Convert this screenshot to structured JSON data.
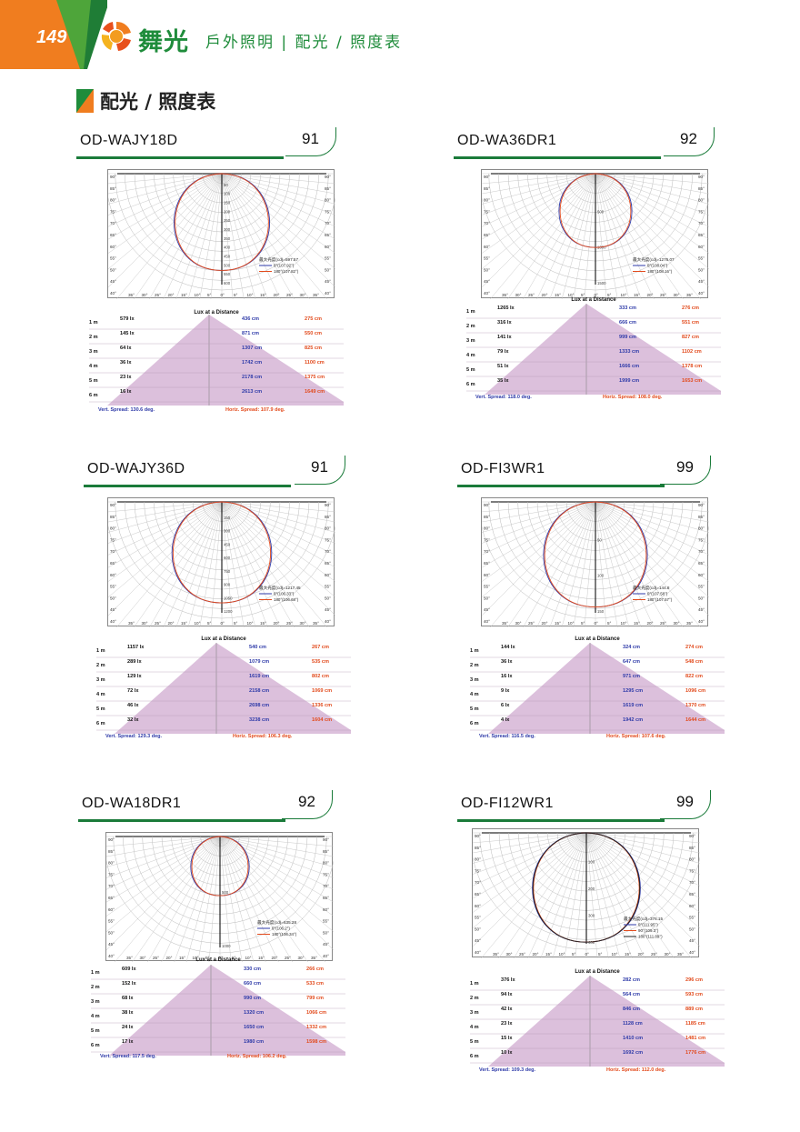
{
  "header": {
    "page_number": "149",
    "brand": "舞光",
    "subtitle": "戶外照明 | 配光 / 照度表",
    "section_title": "配光 / 照度表"
  },
  "colors": {
    "brand_green": "#1f8c3b",
    "tab_orange": "#f07d1f",
    "vertical_blue": "#2e3aa8",
    "horizontal_red": "#e24a1c",
    "lux_fill": "#d8b6d8"
  },
  "lux_heading": "Lux at a Distance",
  "products": [
    {
      "model": "OD-WAJY18D",
      "badge": "91",
      "polar": {
        "max_label": "最大光度(cd)=597.57",
        "legend": [
          "0°(107.92°)",
          "180°(107.82°)"
        ],
        "radial_ticks": [
          "50",
          "100",
          "150",
          "200",
          "250",
          "300",
          "350",
          "400",
          "450",
          "500",
          "550",
          "600"
        ],
        "spread_ratio": 0.82
      },
      "rows": [
        {
          "d": "1 m",
          "lux": "579 lx",
          "v": "436 cm",
          "h": "275 cm"
        },
        {
          "d": "2 m",
          "lux": "145 lx",
          "v": "871 cm",
          "h": "550 cm"
        },
        {
          "d": "3 m",
          "lux": "64 lx",
          "v": "1307 cm",
          "h": "825 cm"
        },
        {
          "d": "4 m",
          "lux": "36 lx",
          "v": "1742 cm",
          "h": "1100 cm"
        },
        {
          "d": "5 m",
          "lux": "23 lx",
          "v": "2178 cm",
          "h": "1375 cm"
        },
        {
          "d": "6 m",
          "lux": "16 lx",
          "v": "2613 cm",
          "h": "1649 cm"
        }
      ],
      "vert_spread": "Vert. Spread: 130.6 deg.",
      "horiz_spread": "Horiz. Spread: 107.9 deg."
    },
    {
      "model": "OD-WA36DR1",
      "badge": "92",
      "polar": {
        "max_label": "最大光度(cd)=1276.07",
        "legend": [
          "0°(108.04°)",
          "180°(108.16°)"
        ],
        "radial_ticks": [
          "500",
          "1000",
          "1500"
        ],
        "spread_ratio": 0.6
      },
      "rows": [
        {
          "d": "1 m",
          "lux": "1265 lx",
          "v": "333 cm",
          "h": "276 cm"
        },
        {
          "d": "2 m",
          "lux": "316 lx",
          "v": "666 cm",
          "h": "551 cm"
        },
        {
          "d": "3 m",
          "lux": "141 lx",
          "v": "999 cm",
          "h": "827 cm"
        },
        {
          "d": "4 m",
          "lux": "79 lx",
          "v": "1333 cm",
          "h": "1102 cm"
        },
        {
          "d": "5 m",
          "lux": "51 lx",
          "v": "1666 cm",
          "h": "1378 cm"
        },
        {
          "d": "6 m",
          "lux": "35 lx",
          "v": "1999 cm",
          "h": "1653 cm"
        }
      ],
      "vert_spread": "Vert. Spread: 118.0 deg.",
      "horiz_spread": "Horiz. Spread: 108.0 deg."
    },
    {
      "model": "OD-WAJY36D",
      "badge": "91",
      "polar": {
        "max_label": "最大光度(cd)=1217.45",
        "legend": [
          "0°(106.33°)",
          "180°(106.68°)"
        ],
        "radial_ticks": [
          "150",
          "300",
          "450",
          "600",
          "750",
          "900",
          "1050",
          "1200"
        ],
        "spread_ratio": 0.86
      },
      "rows": [
        {
          "d": "1 m",
          "lux": "1157 lx",
          "v": "540 cm",
          "h": "267 cm"
        },
        {
          "d": "2 m",
          "lux": "289 lx",
          "v": "1079 cm",
          "h": "535 cm"
        },
        {
          "d": "3 m",
          "lux": "129 lx",
          "v": "1619 cm",
          "h": "802 cm"
        },
        {
          "d": "4 m",
          "lux": "72 lx",
          "v": "2158 cm",
          "h": "1069 cm"
        },
        {
          "d": "5 m",
          "lux": "46 lx",
          "v": "2698 cm",
          "h": "1336 cm"
        },
        {
          "d": "6 m",
          "lux": "32 lx",
          "v": "3238 cm",
          "h": "1604 cm"
        }
      ],
      "vert_spread": "Vert. Spread: 129.3 deg.",
      "horiz_spread": "Horiz. Spread: 106.3 deg."
    },
    {
      "model": "OD-FI3WR1",
      "badge": "99",
      "polar": {
        "max_label": "最大光度(cd)=144.8",
        "legend": [
          "0°(107.58°)",
          "180°(107.57°)"
        ],
        "radial_ticks": [
          "50",
          "100",
          "150"
        ],
        "spread_ratio": 0.9
      },
      "rows": [
        {
          "d": "1 m",
          "lux": "144 lx",
          "v": "324 cm",
          "h": "274 cm"
        },
        {
          "d": "2 m",
          "lux": "36 lx",
          "v": "647 cm",
          "h": "548 cm"
        },
        {
          "d": "3 m",
          "lux": "16 lx",
          "v": "971 cm",
          "h": "822 cm"
        },
        {
          "d": "4 m",
          "lux": "9 lx",
          "v": "1295 cm",
          "h": "1096 cm"
        },
        {
          "d": "5 m",
          "lux": "6 lx",
          "v": "1619 cm",
          "h": "1370 cm"
        },
        {
          "d": "6 m",
          "lux": "4 lx",
          "v": "1942 cm",
          "h": "1644 cm"
        }
      ],
      "vert_spread": "Vert. Spread: 116.5 deg.",
      "horiz_spread": "Horiz. Spread: 107.6 deg."
    },
    {
      "model": "OD-WA18DR1",
      "badge": "92",
      "polar": {
        "max_label": "最大光度(cd)=635.28",
        "legend": [
          "0°(106.2°)",
          "180°(106.34°)"
        ],
        "radial_ticks": [
          "500",
          "1000"
        ],
        "spread_ratio": 0.46
      },
      "rows": [
        {
          "d": "1 m",
          "lux": "609 lx",
          "v": "330 cm",
          "h": "266 cm"
        },
        {
          "d": "2 m",
          "lux": "152 lx",
          "v": "660 cm",
          "h": "533 cm"
        },
        {
          "d": "3 m",
          "lux": "68 lx",
          "v": "990 cm",
          "h": "799 cm"
        },
        {
          "d": "4 m",
          "lux": "38 lx",
          "v": "1320 cm",
          "h": "1066 cm"
        },
        {
          "d": "5 m",
          "lux": "24 lx",
          "v": "1650 cm",
          "h": "1332 cm"
        },
        {
          "d": "6 m",
          "lux": "17 lx",
          "v": "1980 cm",
          "h": "1598 cm"
        }
      ],
      "vert_spread": "Vert. Spread: 117.5 deg.",
      "horiz_spread": "Horiz. Spread: 106.2 deg."
    },
    {
      "model": "OD-FI12WR1",
      "badge": "99",
      "polar": {
        "max_label": "最大光度(cd)=376.15",
        "legend": [
          "0°(111.95°)",
          "90°(109.3°)",
          "180°(111.89°)"
        ],
        "radial_ticks": [
          "100",
          "200",
          "300",
          "400"
        ],
        "spread_ratio": 0.94
      },
      "rows": [
        {
          "d": "1 m",
          "lux": "376 lx",
          "v": "282 cm",
          "h": "296 cm"
        },
        {
          "d": "2 m",
          "lux": "94 lx",
          "v": "564 cm",
          "h": "593 cm"
        },
        {
          "d": "3 m",
          "lux": "42 lx",
          "v": "846 cm",
          "h": "889 cm"
        },
        {
          "d": "4 m",
          "lux": "23 lx",
          "v": "1128 cm",
          "h": "1185 cm"
        },
        {
          "d": "5 m",
          "lux": "15 lx",
          "v": "1410 cm",
          "h": "1481 cm"
        },
        {
          "d": "6 m",
          "lux": "10 lx",
          "v": "1692 cm",
          "h": "1776 cm"
        }
      ],
      "vert_spread": "Vert. Spread: 109.3 deg.",
      "horiz_spread": "Horiz. Spread: 112.0 deg."
    }
  ],
  "angle_labels_side": [
    "90°",
    "85°",
    "80°",
    "75°",
    "70°",
    "65°",
    "60°",
    "55°",
    "50°",
    "45°",
    "40°"
  ],
  "angle_labels_bottom": [
    "35°",
    "30°",
    "25°",
    "20°",
    "15°",
    "10°",
    "5°",
    "0°",
    "5°",
    "10°",
    "15°",
    "20°",
    "25°",
    "30°",
    "35°"
  ]
}
